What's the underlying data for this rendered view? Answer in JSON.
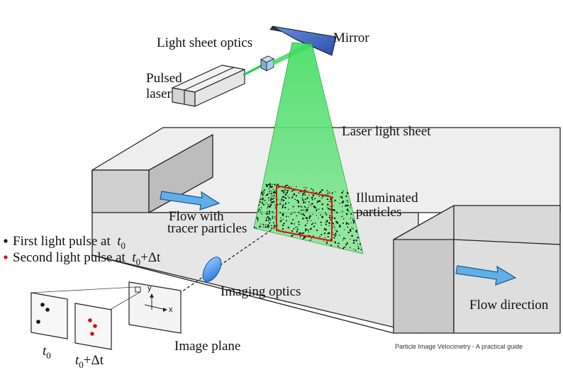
{
  "labels": {
    "light_sheet_optics": "Light sheet optics",
    "mirror": "Mirror",
    "pulsed": "Pulsed",
    "laser": "laser",
    "laser_light_sheet": "Laser light sheet",
    "illuminated": "Illuminated",
    "particles": "particles",
    "flow_with": "Flow with",
    "tracer_particles": "tracer particles",
    "imaging_optics": "Imaging optics",
    "flow_direction": "Flow direction",
    "image_plane": "Image plane",
    "credit": "Particle Image Velocimetry - A practical guide"
  },
  "legend": {
    "first_pulse": "First light pulse at",
    "second_pulse": "Second light pulse at",
    "t": "t",
    "sub0": "0",
    "plus_dt": "+Δt"
  },
  "frames": {
    "t0": "t",
    "t0_sub": "0",
    "t0dt": "t",
    "t0dt_sub": "0",
    "t0dt_suffix": "+Δt",
    "axis_y": "y",
    "axis_x": "x"
  },
  "colors": {
    "sheet_green": "#2fd85a",
    "frame_red": "#e01010",
    "arrow_blue": "#5fb0e8",
    "mirror_blue": "#3a6fd0",
    "channel_gray": "#d8d8d8"
  }
}
